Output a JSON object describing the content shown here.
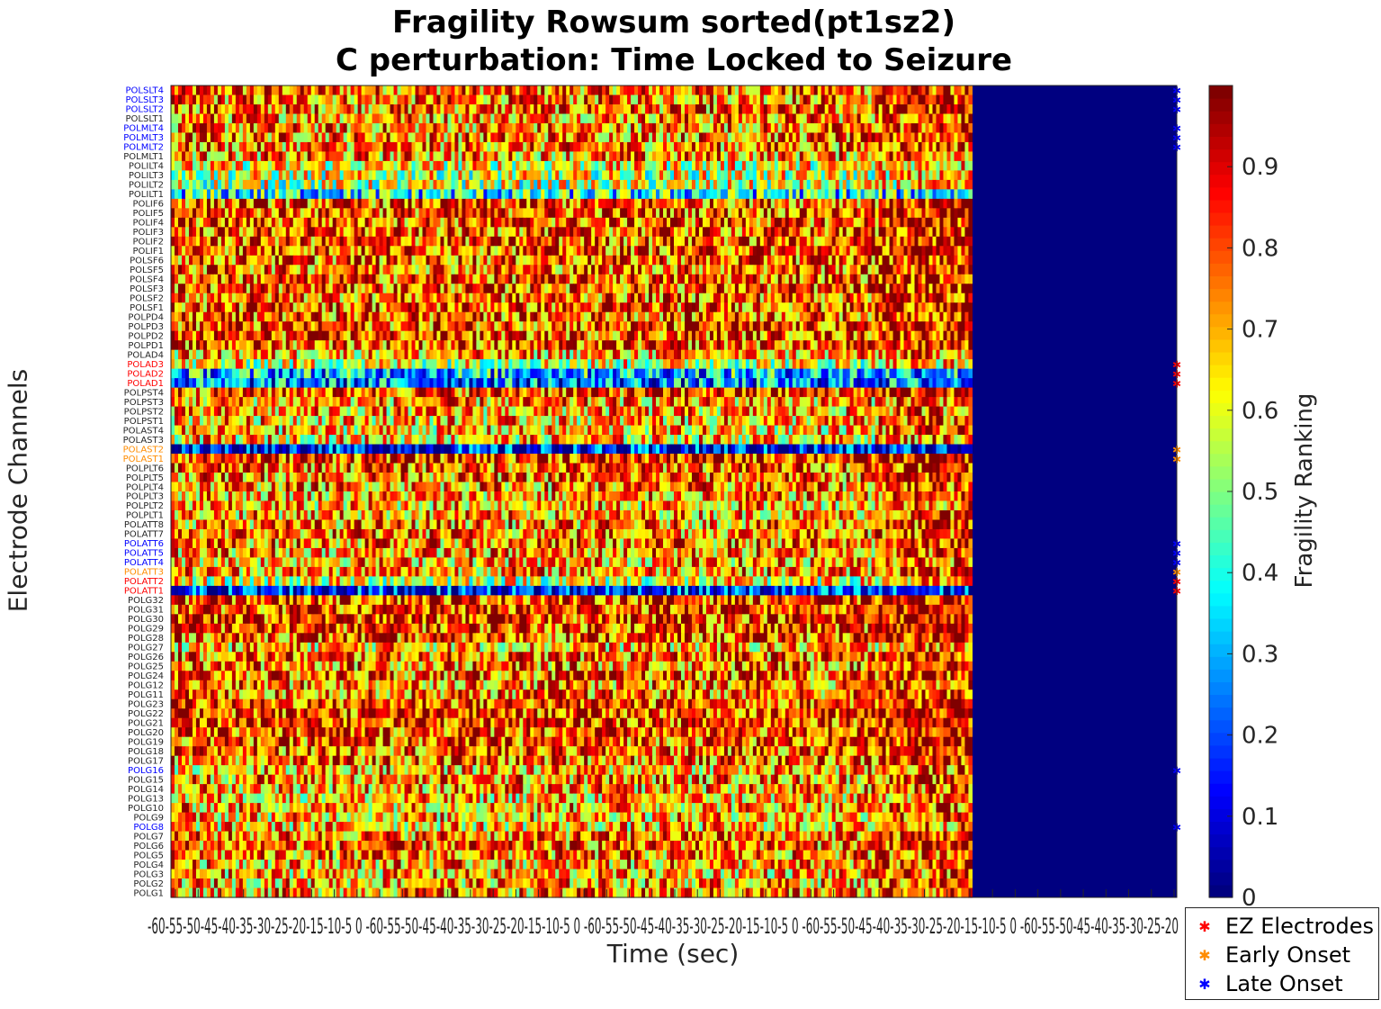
{
  "colors": {
    "ez": "#ff0000",
    "early": "#ff8c00",
    "late": "#0000ff",
    "normal": "#262626",
    "colormap": "jet"
  },
  "chart_data": {
    "type": "heatmap",
    "title": [
      "Fragility Rowsum sorted(pt1sz2)",
      "C perturbation:  Time Locked to Seizure"
    ],
    "xlabel": "Time (sec)",
    "ylabel": "Electrode Channels",
    "colorbar": {
      "label": "Fragility Ranking",
      "range": [
        0,
        1
      ],
      "ticks": [
        "0",
        "0.1",
        "0.2",
        "0.3",
        "0.4",
        "0.5",
        "0.6",
        "0.7",
        "0.8",
        "0.9"
      ],
      "tick_values": [
        0,
        0.1,
        0.2,
        0.3,
        0.4,
        0.5,
        0.6,
        0.7,
        0.8,
        0.9
      ]
    },
    "x_tick_labels_text": "-60-55-50-45-40-35-30-25-20-15-10-5 0 -60-55-50-45-40-35-30-25-20-15-10-5 0 -60-55-50-45-40-35-30-25-20-15-10-5 0 -60-55-50-45-40-35-30-25-20-15-10-5 0 -60-55-50-45-40-35-30-25-20",
    "x_ticks_visible": [
      "-6",
      "0",
      "-6",
      "0",
      "-6",
      "0",
      "-6",
      "0",
      "-6",
      "0",
      "-6",
      "0"
    ],
    "channels": [
      {
        "name": "POLSLT4",
        "group": "late"
      },
      {
        "name": "POLSLT3",
        "group": "late"
      },
      {
        "name": "POLSLT2",
        "group": "late"
      },
      {
        "name": "POLSLT1",
        "group": "normal"
      },
      {
        "name": "POLMLT4",
        "group": "late"
      },
      {
        "name": "POLMLT3",
        "group": "late"
      },
      {
        "name": "POLMLT2",
        "group": "late"
      },
      {
        "name": "POLMLT1",
        "group": "normal"
      },
      {
        "name": "POLILT4",
        "group": "normal"
      },
      {
        "name": "POLILT3",
        "group": "normal"
      },
      {
        "name": "POLILT2",
        "group": "normal"
      },
      {
        "name": "POLILT1",
        "group": "normal"
      },
      {
        "name": "POLIF6",
        "group": "normal"
      },
      {
        "name": "POLIF5",
        "group": "normal"
      },
      {
        "name": "POLIF4",
        "group": "normal"
      },
      {
        "name": "POLIF3",
        "group": "normal"
      },
      {
        "name": "POLIF2",
        "group": "normal"
      },
      {
        "name": "POLIF1",
        "group": "normal"
      },
      {
        "name": "POLSF6",
        "group": "normal"
      },
      {
        "name": "POLSF5",
        "group": "normal"
      },
      {
        "name": "POLSF4",
        "group": "normal"
      },
      {
        "name": "POLSF3",
        "group": "normal"
      },
      {
        "name": "POLSF2",
        "group": "normal"
      },
      {
        "name": "POLSF1",
        "group": "normal"
      },
      {
        "name": "POLPD4",
        "group": "normal"
      },
      {
        "name": "POLPD3",
        "group": "normal"
      },
      {
        "name": "POLPD2",
        "group": "normal"
      },
      {
        "name": "POLPD1",
        "group": "normal"
      },
      {
        "name": "POLAD4",
        "group": "normal"
      },
      {
        "name": "POLAD3",
        "group": "ez"
      },
      {
        "name": "POLAD2",
        "group": "ez"
      },
      {
        "name": "POLAD1",
        "group": "ez"
      },
      {
        "name": "POLPST4",
        "group": "normal"
      },
      {
        "name": "POLPST3",
        "group": "normal"
      },
      {
        "name": "POLPST2",
        "group": "normal"
      },
      {
        "name": "POLPST1",
        "group": "normal"
      },
      {
        "name": "POLAST4",
        "group": "normal"
      },
      {
        "name": "POLAST3",
        "group": "normal"
      },
      {
        "name": "POLAST2",
        "group": "early"
      },
      {
        "name": "POLAST1",
        "group": "early"
      },
      {
        "name": "POLPLT6",
        "group": "normal"
      },
      {
        "name": "POLPLT5",
        "group": "normal"
      },
      {
        "name": "POLPLT4",
        "group": "normal"
      },
      {
        "name": "POLPLT3",
        "group": "normal"
      },
      {
        "name": "POLPLT2",
        "group": "normal"
      },
      {
        "name": "POLPLT1",
        "group": "normal"
      },
      {
        "name": "POLATT8",
        "group": "normal"
      },
      {
        "name": "POLATT7",
        "group": "normal"
      },
      {
        "name": "POLATT6",
        "group": "late"
      },
      {
        "name": "POLATT5",
        "group": "late"
      },
      {
        "name": "POLATT4",
        "group": "late"
      },
      {
        "name": "POLATT3",
        "group": "early"
      },
      {
        "name": "POLATT2",
        "group": "ez"
      },
      {
        "name": "POLATT1",
        "group": "ez"
      },
      {
        "name": "POLG32",
        "group": "normal"
      },
      {
        "name": "POLG31",
        "group": "normal"
      },
      {
        "name": "POLG30",
        "group": "normal"
      },
      {
        "name": "POLG29",
        "group": "normal"
      },
      {
        "name": "POLG28",
        "group": "normal"
      },
      {
        "name": "POLG27",
        "group": "normal"
      },
      {
        "name": "POLG26",
        "group": "normal"
      },
      {
        "name": "POLG25",
        "group": "normal"
      },
      {
        "name": "POLG24",
        "group": "normal"
      },
      {
        "name": "POLG12",
        "group": "normal"
      },
      {
        "name": "POLG11",
        "group": "normal"
      },
      {
        "name": "POLG23",
        "group": "normal"
      },
      {
        "name": "POLG22",
        "group": "normal"
      },
      {
        "name": "POLG21",
        "group": "normal"
      },
      {
        "name": "POLG20",
        "group": "normal"
      },
      {
        "name": "POLG19",
        "group": "normal"
      },
      {
        "name": "POLG18",
        "group": "normal"
      },
      {
        "name": "POLG17",
        "group": "normal"
      },
      {
        "name": "POLG16",
        "group": "late"
      },
      {
        "name": "POLG15",
        "group": "normal"
      },
      {
        "name": "POLG14",
        "group": "normal"
      },
      {
        "name": "POLG13",
        "group": "normal"
      },
      {
        "name": "POLG10",
        "group": "normal"
      },
      {
        "name": "POLG9",
        "group": "normal"
      },
      {
        "name": "POLG8",
        "group": "late"
      },
      {
        "name": "POLG7",
        "group": "normal"
      },
      {
        "name": "POLG6",
        "group": "normal"
      },
      {
        "name": "POLG5",
        "group": "normal"
      },
      {
        "name": "POLG4",
        "group": "normal"
      },
      {
        "name": "POLG3",
        "group": "normal"
      },
      {
        "name": "POLG2",
        "group": "normal"
      },
      {
        "name": "POLG1",
        "group": "normal"
      }
    ],
    "channel_mean_fragility": [
      0.78,
      0.76,
      0.77,
      0.75,
      0.74,
      0.76,
      0.75,
      0.73,
      0.62,
      0.58,
      0.56,
      0.38,
      0.8,
      0.81,
      0.8,
      0.79,
      0.8,
      0.81,
      0.79,
      0.78,
      0.8,
      0.79,
      0.78,
      0.8,
      0.79,
      0.8,
      0.81,
      0.8,
      0.7,
      0.6,
      0.32,
      0.25,
      0.82,
      0.72,
      0.7,
      0.7,
      0.68,
      0.68,
      0.12,
      0.85,
      0.79,
      0.77,
      0.74,
      0.72,
      0.7,
      0.72,
      0.74,
      0.76,
      0.75,
      0.73,
      0.72,
      0.74,
      0.6,
      0.15,
      0.84,
      0.83,
      0.84,
      0.82,
      0.8,
      0.7,
      0.78,
      0.76,
      0.78,
      0.75,
      0.76,
      0.82,
      0.83,
      0.84,
      0.81,
      0.8,
      0.79,
      0.78,
      0.7,
      0.74,
      0.72,
      0.68,
      0.72,
      0.7,
      0.68,
      0.76,
      0.78,
      0.74,
      0.72,
      0.7,
      0.72,
      0.74
    ],
    "time_windows_total": 1120,
    "time_windows_with_data": 890,
    "trailing_value": 0,
    "legend": [
      {
        "label": "EZ Electrodes",
        "group": "ez"
      },
      {
        "label": "Early Onset",
        "group": "early"
      },
      {
        "label": "Late Onset",
        "group": "late"
      }
    ]
  }
}
